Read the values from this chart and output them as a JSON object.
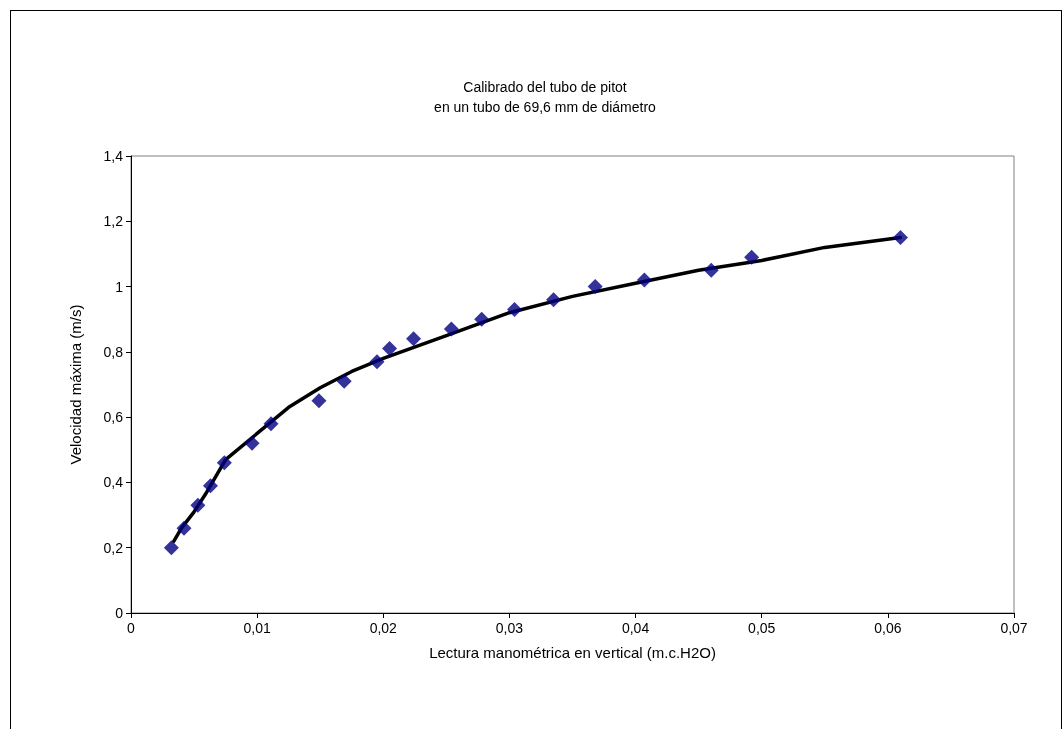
{
  "chart_data": {
    "type": "scatter",
    "title": "Calibrado del tubo de pitot\nen un tubo de 69,6 mm de diámetro",
    "xlabel": "Lectura manométrica en vertical (m.c.H2O)",
    "ylabel": "Velocidad máxima (m/s)",
    "xlim": [
      0,
      0.07
    ],
    "xticks": [
      0,
      {
        "value": 0.01,
        "label": "0,01"
      },
      {
        "value": 0.02,
        "label": "0,02"
      },
      {
        "value": 0.03,
        "label": "0,03"
      },
      {
        "value": 0.04,
        "label": "0,04"
      },
      {
        "value": 0.05,
        "label": "0,05"
      },
      {
        "value": 0.06,
        "label": "0,06"
      },
      {
        "value": 0.07,
        "label": "0,07"
      }
    ],
    "ylim": [
      0,
      1.4
    ],
    "yticks": [
      0,
      {
        "value": 0.2,
        "label": "0,2"
      },
      {
        "value": 0.4,
        "label": "0,4"
      },
      {
        "value": 0.6,
        "label": "0,6"
      },
      {
        "value": 0.8,
        "label": "0,8"
      },
      1,
      {
        "value": 1.2,
        "label": "1,2"
      },
      {
        "value": 1.4,
        "label": "1,4"
      }
    ],
    "grid": false,
    "series": [
      {
        "type": "line",
        "color": "#000000",
        "marker": "none",
        "line_style": "solid",
        "x": [
          0.0034,
          0.004,
          0.005,
          0.006,
          0.0075,
          0.01,
          0.0125,
          0.015,
          0.0175,
          0.02,
          0.025,
          0.03,
          0.035,
          0.04,
          0.045,
          0.05,
          0.055,
          0.061
        ],
        "values": [
          0.22,
          0.26,
          0.31,
          0.37,
          0.47,
          0.55,
          0.63,
          0.69,
          0.74,
          0.78,
          0.85,
          0.92,
          0.97,
          1.01,
          1.05,
          1.08,
          1.12,
          1.15
        ]
      },
      {
        "color": "#000080",
        "marker": "diamond",
        "x": [
          0.0032,
          0.0042,
          0.0053,
          0.0063,
          0.0074,
          0.0096,
          0.0111,
          0.0149,
          0.0169,
          0.0195,
          0.0205,
          0.0224,
          0.0254,
          0.0278,
          0.0304,
          0.0335,
          0.0368,
          0.0407,
          0.046,
          0.0492,
          0.061
        ],
        "values": [
          0.2,
          0.26,
          0.33,
          0.39,
          0.46,
          0.52,
          0.58,
          0.65,
          0.71,
          0.77,
          0.81,
          0.84,
          0.87,
          0.9,
          0.93,
          0.96,
          1.0,
          1.02,
          1.05,
          1.09,
          1.15
        ]
      }
    ]
  }
}
